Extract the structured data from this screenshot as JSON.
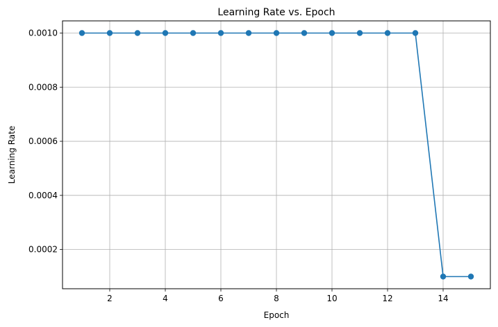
{
  "chart_data": {
    "type": "line",
    "title": "Learning Rate vs. Epoch",
    "xlabel": "Epoch",
    "ylabel": "Learning Rate",
    "x": [
      1,
      2,
      3,
      4,
      5,
      6,
      7,
      8,
      9,
      10,
      11,
      12,
      13,
      14,
      15
    ],
    "series": [
      {
        "values": [
          0.001,
          0.001,
          0.001,
          0.001,
          0.001,
          0.001,
          0.001,
          0.001,
          0.001,
          0.001,
          0.001,
          0.001,
          0.001,
          0.0001,
          0.0001
        ],
        "color": "#1f77b4",
        "marker": "circle"
      }
    ],
    "xticks": [
      2,
      4,
      6,
      8,
      10,
      12,
      14
    ],
    "xtick_labels": [
      "2",
      "4",
      "6",
      "8",
      "10",
      "12",
      "14"
    ],
    "yticks": [
      0.0002,
      0.0004,
      0.0006,
      0.0008,
      0.001
    ],
    "ytick_labels": [
      "0.0002",
      "0.0004",
      "0.0006",
      "0.0008",
      "0.0010"
    ],
    "xlim": [
      0.3,
      15.7
    ],
    "ylim": [
      5.5e-05,
      0.001045
    ],
    "grid": true,
    "grid_color": "#b0b0b0"
  }
}
